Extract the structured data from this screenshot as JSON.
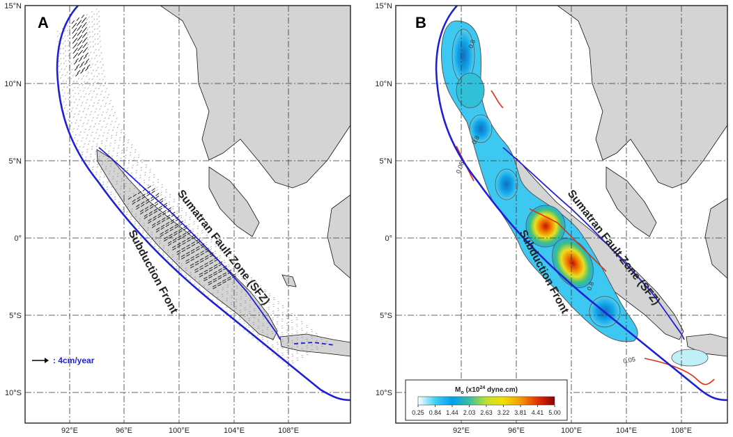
{
  "panels": [
    {
      "id": "A",
      "letter": "A",
      "scale_label": ": 4cm/year",
      "annotations": [
        "Sumatran Fault Zone (SFZ)",
        "Subduction Front"
      ]
    },
    {
      "id": "B",
      "letter": "B",
      "annotations": [
        "Sumatran Fault Zone (SFZ)",
        "Subduction Front"
      ],
      "contour_labels": [
        "0.8",
        "0.8",
        "0.05",
        "0.8",
        "0.05"
      ],
      "legend": {
        "title": "M_o (x10^24 dyne.cm)",
        "title_main": "M",
        "title_sub": "o",
        "title_rest_a": " (x10",
        "title_sup": "24",
        "title_rest_b": " dyne.cm)",
        "ticks": [
          "0.25",
          "0.84",
          "1.44",
          "2.03",
          "2.63",
          "3.22",
          "3.81",
          "4.41",
          "5.00"
        ],
        "colors": [
          "#ffffff",
          "#3fd0f5",
          "#00a0f0",
          "#3ac0a0",
          "#bfe030",
          "#f2e000",
          "#f59a00",
          "#e63000",
          "#8a0000"
        ]
      }
    }
  ],
  "axes": {
    "lon_ticks": [
      "92°E",
      "96°E",
      "100°E",
      "104°E",
      "108°E"
    ],
    "lat_ticks": [
      "15°N",
      "10°N",
      "5°N",
      "0°",
      "5°S",
      "10°S"
    ]
  },
  "colors": {
    "land": "#d4d4d4",
    "subduction_front": "#1f1fd6",
    "fault_red": "#e03010"
  }
}
